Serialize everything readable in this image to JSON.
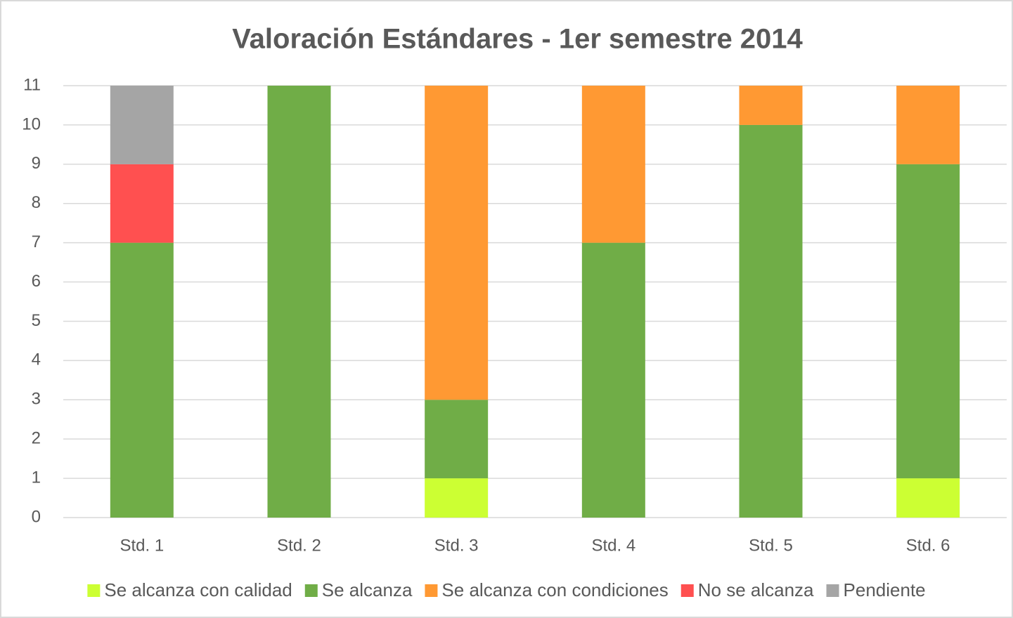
{
  "chart_data": {
    "type": "stacked_bar",
    "title": "Valoración Estándares - 1er semestre 2014",
    "categories": [
      "Std. 1",
      "Std. 2",
      "Std. 3",
      "Std. 4",
      "Std. 5",
      "Std. 6"
    ],
    "series": [
      {
        "name": "Se alcanza con calidad",
        "color": "#ccff33",
        "values": [
          0,
          0,
          1,
          0,
          0,
          1
        ]
      },
      {
        "name": "Se alcanza",
        "color": "#70ad47",
        "values": [
          7,
          11,
          2,
          7,
          10,
          8
        ]
      },
      {
        "name": "Se alcanza con condiciones",
        "color": "#ff9933",
        "values": [
          0,
          0,
          8,
          4,
          1,
          2
        ]
      },
      {
        "name": "No se alcanza",
        "color": "#ff5050",
        "values": [
          2,
          0,
          0,
          0,
          0,
          0
        ]
      },
      {
        "name": "Pendiente",
        "color": "#a5a5a5",
        "values": [
          2,
          0,
          0,
          0,
          0,
          0
        ]
      }
    ],
    "ylim": [
      0,
      11
    ],
    "yticks": [
      0,
      1,
      2,
      3,
      4,
      5,
      6,
      7,
      8,
      9,
      10,
      11
    ],
    "grid": true,
    "legend": "bottom"
  }
}
